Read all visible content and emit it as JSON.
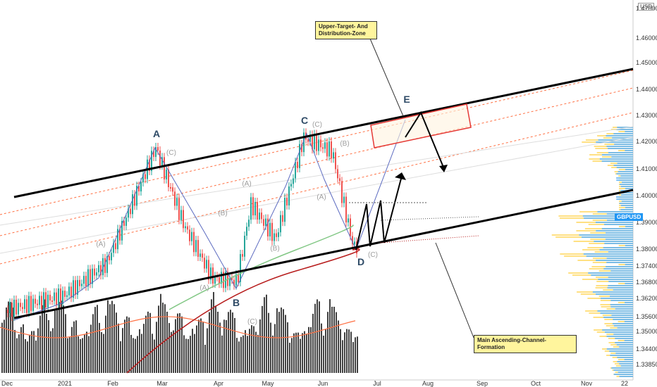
{
  "chart_data": {
    "type": "candlestick",
    "currency_label": "USD",
    "symbol_tag": "GBPUSD",
    "y_ticks": [
      "1.47000",
      "1.46000",
      "1.45000",
      "1.44000",
      "1.43000",
      "1.42000",
      "1.41000",
      "1.40000",
      "1.39000",
      "1.38000",
      "1.37400",
      "1.36800",
      "1.36200",
      "1.35600",
      "1.35000",
      "1.34400",
      "1.33850"
    ],
    "x_ticks": [
      "Dec",
      "2021",
      "Feb",
      "Mar",
      "Apr",
      "May",
      "Jun",
      "Jul",
      "Aug",
      "Sep",
      "Oct",
      "Nov",
      "22"
    ],
    "wave_labels": [
      {
        "id": "A",
        "text": "A"
      },
      {
        "id": "B",
        "text": "B"
      },
      {
        "id": "C",
        "text": "C"
      },
      {
        "id": "D",
        "text": "D"
      },
      {
        "id": "E",
        "text": "E"
      }
    ],
    "sub_labels": [
      {
        "id": "s1",
        "text": "(A)"
      },
      {
        "id": "s2",
        "text": "(C)"
      },
      {
        "id": "s3",
        "text": "(A)"
      },
      {
        "id": "s4",
        "text": "(B)"
      },
      {
        "id": "s5",
        "text": "(C)"
      },
      {
        "id": "s6",
        "text": "(A)"
      },
      {
        "id": "s7",
        "text": "(B)"
      },
      {
        "id": "s8",
        "text": "(C)"
      },
      {
        "id": "s9",
        "text": "(B)"
      },
      {
        "id": "s10",
        "text": "(A)"
      },
      {
        "id": "s11",
        "text": "(C)"
      }
    ],
    "annotations": {
      "upper_target": "Upper-Target- And Distribution-Zone",
      "channel": "Main Ascending-Channel-Formation"
    },
    "colors": {
      "bull": "#26a69a",
      "bear": "#ef5350",
      "channel": "#000000",
      "ma_green": "#81c784",
      "ma_red": "#b71c1c",
      "zigzag": "#5c6bc0",
      "volume": "#424242",
      "profile_blue": "#64b5f6",
      "profile_yellow": "#ffe082",
      "target_box": "#e53935"
    }
  }
}
